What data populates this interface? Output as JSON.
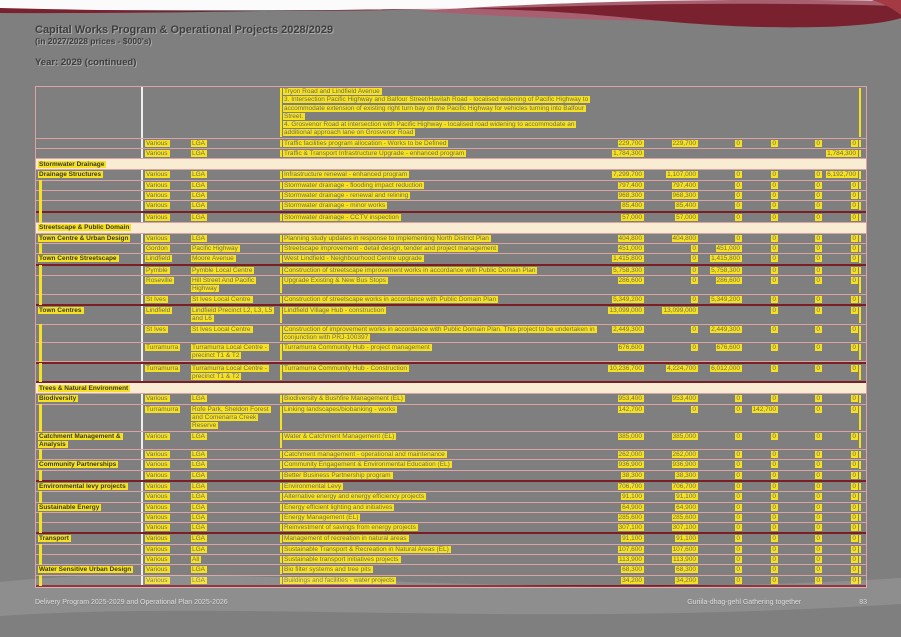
{
  "page": {
    "title_line1": "Capital Works Program & Operational Projects 2028/2029",
    "title_line2": "(in 2027/2028 prices - $000's)",
    "year_label": "Year: 2029 (continued)"
  },
  "footer": {
    "left": "Delivery Program 2025-2029 and Operational Plan 2025-2026",
    "right": "Guriila-dhag-gehl Gathering together",
    "page_number": "83"
  },
  "colors": {
    "page_background": "#7f7f7f",
    "highlight_yellow": "#f5e120",
    "section_cream": "#f8edd3",
    "grid_pink": "#dda2a2",
    "rule_maroon": "#7c1e26",
    "banner_maroon": "#7a2130",
    "banner_rose": "#a86070"
  },
  "table": {
    "rows": [
      {
        "t": "r",
        "d": "Tryon Road and Lindfield Avenue\n3. Intersection Pacific Highway and Balfour Street/Havilah Road - localised widening of Pacific Highway to accommodate extension of existing right turn bay on the Pacific Highway for vehicles turning into Balfour Street.\n4. Grosvenor Road at intersection with Pacific Highway - localised road widening to accommodate an additional approach lane on Grosvenor Road",
        "v": [
          "",
          "",
          "",
          "",
          "",
          ""
        ]
      },
      {
        "t": "r",
        "sb": "Various",
        "lc": "LGA",
        "d": "Traffic facilities program allocation - Works to be Defined",
        "v": [
          "229,700",
          "229,700",
          "0",
          "0",
          "0",
          "0"
        ]
      },
      {
        "t": "r",
        "sb": "Various",
        "lc": "LGA",
        "d": "Traffic & Transport Infrastructure Upgrade - enhanced program",
        "v": [
          "1,784,300",
          "",
          "",
          "",
          "",
          "1,784,300"
        ]
      },
      {
        "t": "s",
        "g": "Stormwater Drainage"
      },
      {
        "t": "r",
        "g": "Drainage Structures",
        "sb": "Various",
        "lc": "LGA",
        "d": "Infrastructure renewal - enhanced program",
        "v": [
          "7,299,700",
          "1,107,000",
          "0",
          "0",
          "0",
          "6,192,700"
        ]
      },
      {
        "t": "r",
        "cont": true,
        "sb": "Various",
        "lc": "LGA",
        "d": "Stormwater drainage - flooding impact reduction",
        "v": [
          "797,400",
          "797,400",
          "0",
          "0",
          "0",
          "0"
        ]
      },
      {
        "t": "r",
        "cont": true,
        "sb": "Various",
        "lc": "LGA",
        "d": "Stormwater drainage - renewal and relining",
        "v": [
          "968,300",
          "968,300",
          "0",
          "0",
          "0",
          "0"
        ]
      },
      {
        "t": "r",
        "cont": true,
        "tb": true,
        "sb": "Various",
        "lc": "LGA",
        "d": "Stormwater drainage - minor works",
        "v": [
          "85,400",
          "85,400",
          "0",
          "0",
          "0",
          "0"
        ]
      },
      {
        "t": "r",
        "cont": true,
        "sb": "Various",
        "lc": "LGA",
        "d": "Stormwater drainage - CCTV inspection",
        "v": [
          "57,000",
          "57,000",
          "0",
          "0",
          "0",
          "0"
        ]
      },
      {
        "t": "s",
        "g": "Streetscape & Public Domain"
      },
      {
        "t": "r",
        "g": "Town Centre & Urban Design",
        "sb": "Various",
        "lc": "LGA",
        "d": "Planning study updates in response to implementing North District Plan",
        "v": [
          "404,800",
          "404,800",
          "0",
          "0",
          "0",
          "0"
        ]
      },
      {
        "t": "r",
        "cont": true,
        "sb": "Gordon",
        "lc": "Pacific Highway",
        "d": "Streetscape improvement - detail design, tender and project management",
        "v": [
          "451,000",
          "0",
          "451,000",
          "0",
          "0",
          "0"
        ]
      },
      {
        "t": "r",
        "g": "Town Centre Streetscape",
        "tb": true,
        "sb": "Lindfield",
        "lc": "Moore Avenue",
        "d": "West Lindfield - Neighbourhood Centre upgrade",
        "v": [
          "1,415,800",
          "0",
          "1,415,800",
          "0",
          "0",
          "0"
        ]
      },
      {
        "t": "r",
        "cont": true,
        "sb": "Pymble",
        "lc": "Pymble Local Centre",
        "d": "Construction of streetscape improvement works in accordance with Public Domain Plan",
        "v": [
          "5,758,300",
          "0",
          "5,758,300",
          "0",
          "0",
          "0"
        ]
      },
      {
        "t": "r",
        "cont": true,
        "sb": "Roseville",
        "lc": "Hill Street And Pacific Highway",
        "d": "Upgrade Existing & New Bus Stops",
        "v": [
          "286,600",
          "0",
          "286,600",
          "0",
          "0",
          "0"
        ]
      },
      {
        "t": "r",
        "cont": true,
        "tb": true,
        "sb": "St Ives",
        "lc": "St Ives Local Centre",
        "d": "Construction of streetscape works in accordance with Public Domain Plan",
        "v": [
          "5,349,200",
          "0",
          "5,349,200",
          "0",
          "0",
          "0"
        ]
      },
      {
        "t": "r",
        "g": "Town Centres",
        "sb": "Lindfield",
        "lc": "Lindfield Precinct L2, L3, L5 and L6",
        "d": "Lindfield Village Hub - construction",
        "v": [
          "13,099,000",
          "13,099,000",
          "",
          "0",
          "0",
          "0"
        ]
      },
      {
        "t": "r",
        "cont": true,
        "sb": "St Ives",
        "lc": "St Ives Local Centre",
        "d": "Construction of improvement works in accordance with Public Domain Plan. This project to be undertaken in conjunction with PRJ-100397",
        "v": [
          "2,449,300",
          "0",
          "2,449,300",
          "0",
          "0",
          "0"
        ]
      },
      {
        "t": "r",
        "cont": true,
        "sb": "Turramurra",
        "lc": "Turramurra Local Centre - precinct T1 & T2",
        "d": "Turramurra Community Hub - project management",
        "v": [
          "676,600",
          "0",
          "676,600",
          "0",
          "0",
          "0"
        ]
      },
      {
        "t": "r",
        "cont": true,
        "tt": true,
        "tb": true,
        "sb": "Turramurra",
        "lc": "Turramurra Local Centre - precinct T1 & T2",
        "d": "Turramurra Community Hub - Construction",
        "v": [
          "10,236,700",
          "4,224,700",
          "6,012,000",
          "0",
          "0",
          "0"
        ]
      },
      {
        "t": "s",
        "g": "Trees & Natural Environment"
      },
      {
        "t": "r",
        "g": "Biodiversity",
        "sb": "Various",
        "lc": "LGA",
        "d": "Biodiversity & Bushfire Management (EL)",
        "v": [
          "953,400",
          "953,400",
          "0",
          "0",
          "0",
          "0"
        ]
      },
      {
        "t": "r",
        "cont": true,
        "sb": "Turramurra",
        "lc": "Rofe Park, Sheldon Forest and Comenarra Creek Reserve",
        "d": "Linking landscapes/biobanking - works",
        "v": [
          "142,700",
          "0",
          "0",
          "142,700",
          "0",
          "0"
        ]
      },
      {
        "t": "r",
        "g": "Catchment Management & Analysis",
        "sb": "Various",
        "lc": "LGA",
        "d": "Water & Catchment Management (EL)",
        "v": [
          "385,000",
          "385,000",
          "0",
          "0",
          "0",
          "0"
        ]
      },
      {
        "t": "r",
        "cont": true,
        "sb": "Various",
        "lc": "LGA",
        "d": "Catchment management - operational and maintenance",
        "v": [
          "262,000",
          "262,000",
          "0",
          "0",
          "0",
          "0"
        ]
      },
      {
        "t": "r",
        "g": "Community Partnerships",
        "sb": "Various",
        "lc": "LGA",
        "d": "Community Engagement & Environmental Education (EL)",
        "v": [
          "936,900",
          "936,900",
          "0",
          "0",
          "0",
          "0"
        ]
      },
      {
        "t": "r",
        "cont": true,
        "tb": true,
        "sb": "Various",
        "lc": "LGA",
        "d": "Better Business Partnership program",
        "v": [
          "38,300",
          "38,300",
          "0",
          "0",
          "0",
          "0"
        ]
      },
      {
        "t": "r",
        "g": "Environmental levy projects",
        "sb": "Various",
        "lc": "LGA",
        "d": "Environmental Levy",
        "v": [
          "706,700",
          "706,700",
          "0",
          "0",
          "0",
          "0"
        ]
      },
      {
        "t": "r",
        "cont": true,
        "sb": "Various",
        "lc": "LGA",
        "d": "Alternative energy and energy efficiency projects",
        "v": [
          "91,100",
          "91,100",
          "0",
          "0",
          "0",
          "0"
        ]
      },
      {
        "t": "r",
        "g": "Sustainable Energy",
        "sb": "Various",
        "lc": "LGA",
        "d": "Energy efficient lighting and initiatives",
        "v": [
          "64,900",
          "64,900",
          "0",
          "0",
          "0",
          "0"
        ]
      },
      {
        "t": "r",
        "cont": true,
        "sb": "Various",
        "lc": "LGA",
        "d": "Energy Management (EL)",
        "v": [
          "285,600",
          "285,600",
          "0",
          "0",
          "0",
          "0"
        ]
      },
      {
        "t": "r",
        "cont": true,
        "tb": true,
        "sb": "Various",
        "lc": "LGA",
        "d": "Reinvestment of savings from energy projects",
        "v": [
          "307,100",
          "307,100",
          "0",
          "0",
          "0",
          "0"
        ]
      },
      {
        "t": "r",
        "g": "Transport",
        "sb": "Various",
        "lc": "LGA",
        "d": "Management of recreation in natural areas",
        "v": [
          "91,100",
          "91,100",
          "0",
          "0",
          "0",
          "0"
        ]
      },
      {
        "t": "r",
        "cont": true,
        "sb": "Various",
        "lc": "LGA",
        "d": "Sustainable Transport & Recreation in Natural Areas (EL)",
        "v": [
          "107,600",
          "107,600",
          "0",
          "0",
          "0",
          "0"
        ]
      },
      {
        "t": "r",
        "cont": true,
        "sb": "Various",
        "lc": "All",
        "d": "Sustainable transport initiatives projects",
        "v": [
          "113,900",
          "113,900",
          "0",
          "0",
          "0",
          "0"
        ]
      },
      {
        "t": "r",
        "g": "Water Sensitive Urban Design",
        "sb": "Various",
        "lc": "LGA",
        "d": "Bio filter systems and tree pits",
        "v": [
          "68,300",
          "68,300",
          "0",
          "0",
          "0",
          "0"
        ]
      },
      {
        "t": "r",
        "cont": true,
        "tb": true,
        "sb": "Various",
        "lc": "LGA",
        "d": "Buildings and facilities - water projects",
        "v": [
          "34,200",
          "34,200",
          "0",
          "0",
          "0",
          "0"
        ]
      }
    ]
  }
}
